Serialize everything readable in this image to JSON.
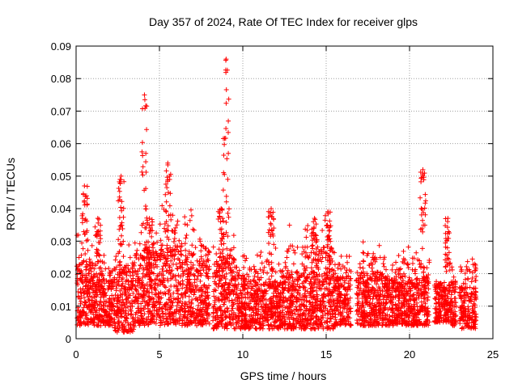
{
  "chart_data": {
    "type": "scatter",
    "title": "Day 357 of 2024, Rate Of TEC Index for receiver glps",
    "xlabel": "GPS time / hours",
    "ylabel": "ROTI / TECUs",
    "xlim": [
      0,
      25
    ],
    "ylim": [
      0,
      0.09
    ],
    "x_ticks": [
      0,
      5,
      10,
      15,
      20,
      25
    ],
    "x_tick_labels": [
      "0",
      "5",
      "10",
      "15",
      "20",
      "25"
    ],
    "y_ticks": [
      0,
      0.01,
      0.02,
      0.03,
      0.04,
      0.05,
      0.06,
      0.07,
      0.08,
      0.09
    ],
    "y_tick_labels": [
      "0",
      "0.01",
      "0.02",
      "0.03",
      "0.04",
      "0.05",
      "0.06",
      "0.07",
      "0.08",
      "0.09"
    ],
    "grid": true,
    "marker": "+",
    "color": "#ff0000",
    "series": [
      {
        "name": "ROTI",
        "segments": [
          {
            "start": 0.0,
            "end": 1.0,
            "base": 0.004,
            "typical": 0.014,
            "peak": 0.032
          },
          {
            "start": 1.0,
            "end": 2.3,
            "base": 0.004,
            "typical": 0.013,
            "peak": 0.026
          },
          {
            "start": 2.3,
            "end": 3.5,
            "base": 0.002,
            "typical": 0.014,
            "peak": 0.03
          },
          {
            "start": 3.5,
            "end": 5.0,
            "base": 0.004,
            "typical": 0.017,
            "peak": 0.035
          },
          {
            "start": 5.0,
            "end": 7.0,
            "base": 0.004,
            "typical": 0.018,
            "peak": 0.042
          },
          {
            "start": 7.0,
            "end": 8.0,
            "base": 0.004,
            "typical": 0.015,
            "peak": 0.034
          },
          {
            "start": 8.2,
            "end": 9.5,
            "base": 0.003,
            "typical": 0.016,
            "peak": 0.033
          },
          {
            "start": 9.5,
            "end": 11.0,
            "base": 0.003,
            "typical": 0.012,
            "peak": 0.026
          },
          {
            "start": 11.0,
            "end": 12.5,
            "base": 0.003,
            "typical": 0.011,
            "peak": 0.028
          },
          {
            "start": 12.5,
            "end": 15.5,
            "base": 0.003,
            "typical": 0.013,
            "peak": 0.035
          },
          {
            "start": 15.5,
            "end": 16.5,
            "base": 0.004,
            "typical": 0.012,
            "peak": 0.03
          },
          {
            "start": 16.8,
            "end": 18.5,
            "base": 0.004,
            "typical": 0.013,
            "peak": 0.031
          },
          {
            "start": 18.5,
            "end": 19.5,
            "base": 0.004,
            "typical": 0.012,
            "peak": 0.026
          },
          {
            "start": 19.5,
            "end": 21.2,
            "base": 0.004,
            "typical": 0.012,
            "peak": 0.03
          },
          {
            "start": 21.5,
            "end": 22.5,
            "base": 0.005,
            "typical": 0.011,
            "peak": 0.02
          },
          {
            "start": 22.5,
            "end": 22.8,
            "base": 0.004,
            "typical": 0.011,
            "peak": 0.025
          },
          {
            "start": 23.0,
            "end": 24.0,
            "base": 0.003,
            "typical": 0.01,
            "peak": 0.027
          }
        ],
        "spikes": [
          {
            "x": 0.5,
            "peak": 0.047
          },
          {
            "x": 1.3,
            "peak": 0.037
          },
          {
            "x": 2.7,
            "peak": 0.05
          },
          {
            "x": 4.1,
            "peak": 0.075
          },
          {
            "x": 4.4,
            "peak": 0.037
          },
          {
            "x": 5.5,
            "peak": 0.054
          },
          {
            "x": 9.0,
            "peak": 0.086
          },
          {
            "x": 8.7,
            "peak": 0.04
          },
          {
            "x": 11.7,
            "peak": 0.04
          },
          {
            "x": 14.3,
            "peak": 0.037
          },
          {
            "x": 15.1,
            "peak": 0.039
          },
          {
            "x": 20.8,
            "peak": 0.052
          },
          {
            "x": 22.3,
            "peak": 0.037
          }
        ]
      }
    ]
  }
}
